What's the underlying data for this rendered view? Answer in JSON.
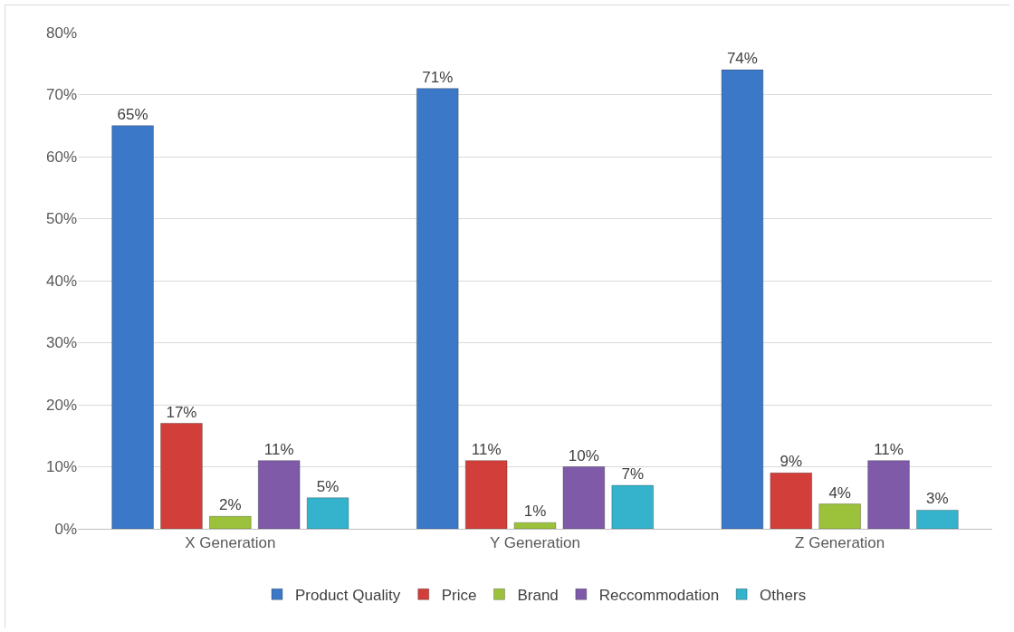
{
  "chart_data": {
    "type": "bar",
    "categories": [
      "X Generation",
      "Y Generation",
      "Z Generation"
    ],
    "series": [
      {
        "name": "Product Quality",
        "color": "#3c78c8",
        "values": [
          65,
          71,
          74
        ],
        "value_labels": [
          "65%",
          "71%",
          "74%"
        ]
      },
      {
        "name": "Price",
        "color": "#d23f3a",
        "values": [
          17,
          11,
          9
        ],
        "value_labels": [
          "17%",
          "11%",
          "9%"
        ]
      },
      {
        "name": "Brand",
        "color": "#9cc23c",
        "values": [
          2,
          1,
          4
        ],
        "value_labels": [
          "2%",
          "1%",
          "4%"
        ]
      },
      {
        "name": "Reccommodation",
        "color": "#7e5aa8",
        "values": [
          11,
          10,
          11
        ],
        "value_labels": [
          "11%",
          "10%",
          "11%"
        ]
      },
      {
        "name": "Others",
        "color": "#35b3cc",
        "values": [
          5,
          7,
          3
        ],
        "value_labels": [
          "5%",
          "7%",
          "3%"
        ]
      }
    ],
    "ylim": [
      0,
      80
    ],
    "yticks": [
      {
        "value": 0,
        "label": "0%"
      },
      {
        "value": 10,
        "label": "10%"
      },
      {
        "value": 20,
        "label": "20%"
      },
      {
        "value": 30,
        "label": "30%"
      },
      {
        "value": 40,
        "label": "40%"
      },
      {
        "value": 50,
        "label": "50%"
      },
      {
        "value": 60,
        "label": "60%"
      },
      {
        "value": 70,
        "label": "70%"
      },
      {
        "value": 80,
        "label": "80%"
      }
    ],
    "grid": "y",
    "legend": "bottom"
  }
}
